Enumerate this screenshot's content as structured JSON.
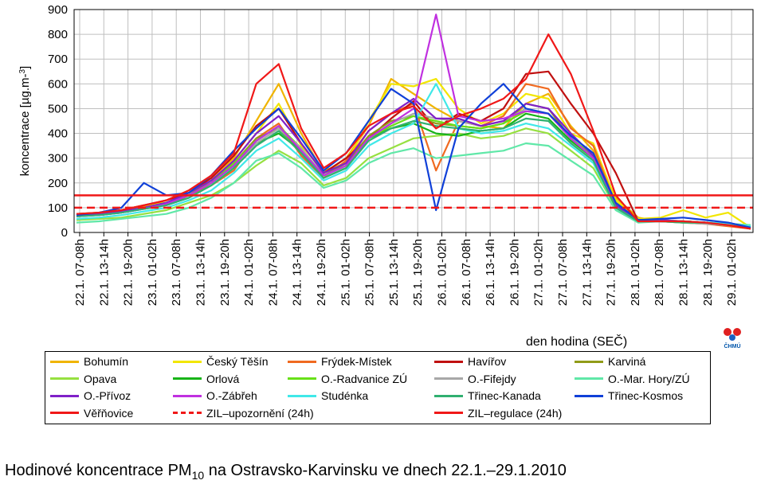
{
  "chart_data": {
    "type": "line",
    "ylabel": "koncentrace [µg.m⁻³]",
    "xlabel": "den hodina (SEČ)",
    "ylim": [
      0,
      900
    ],
    "yticks": [
      "0",
      "100",
      "200",
      "300",
      "400",
      "500",
      "600",
      "700",
      "800",
      "900"
    ],
    "x_ticks": [
      "22.1. 07-08h",
      "22.1. 13-14h",
      "22.1. 19-20h",
      "23.1. 01-02h",
      "23.1. 07-08h",
      "23.1. 13-14h",
      "23.1. 19-20h",
      "24.1. 01-02h",
      "24.1. 07-08h",
      "24.1. 13-14h",
      "24.1. 19-20h",
      "25.1. 01-02h",
      "25.1. 07-08h",
      "25.1. 13-14h",
      "25.1. 19-20h",
      "26.1. 01-02h",
      "26.1. 07-08h",
      "26.1. 13-14h",
      "26.1. 19-20h",
      "27.1. 01-02h",
      "27.1. 07-08h",
      "27.1. 13-14h",
      "27.1. 19-20h",
      "28.1. 01-02h",
      "28.1. 07-08h",
      "28.1. 13-14h",
      "28.1. 19-20h",
      "29.1. 01-02h"
    ],
    "grid": true,
    "legend_position": "bottom",
    "series": [
      {
        "name": "Bohumín",
        "color": "#f0b400",
        "values": [
          70,
          75,
          85,
          105,
          130,
          170,
          220,
          300,
          450,
          600,
          400,
          240,
          300,
          430,
          620,
          560,
          500,
          450,
          430,
          420,
          520,
          560,
          430,
          330,
          140,
          60,
          45,
          45,
          40,
          30,
          15
        ]
      },
      {
        "name": "Český Těšín",
        "color": "#f2e600",
        "values": [
          75,
          80,
          90,
          110,
          120,
          160,
          210,
          290,
          400,
          520,
          350,
          250,
          280,
          450,
          600,
          590,
          620,
          500,
          440,
          480,
          560,
          540,
          400,
          360,
          130,
          55,
          60,
          90,
          60,
          80,
          20
        ]
      },
      {
        "name": "Frýdek-Místek",
        "color": "#f06a20",
        "values": [
          70,
          70,
          80,
          100,
          110,
          150,
          190,
          250,
          380,
          440,
          310,
          220,
          290,
          410,
          480,
          520,
          250,
          450,
          430,
          470,
          600,
          580,
          420,
          350,
          110,
          50,
          45,
          40,
          35,
          25,
          15
        ]
      },
      {
        "name": "Havířov",
        "color": "#c01010",
        "values": [
          75,
          80,
          90,
          110,
          130,
          160,
          220,
          310,
          430,
          500,
          360,
          240,
          300,
          380,
          460,
          530,
          420,
          480,
          450,
          500,
          640,
          650,
          520,
          400,
          240,
          45,
          45,
          45,
          40,
          30,
          15
        ]
      },
      {
        "name": "Karviná",
        "color": "#909b18",
        "values": [
          70,
          75,
          80,
          95,
          110,
          150,
          210,
          280,
          380,
          420,
          330,
          230,
          280,
          390,
          450,
          470,
          440,
          430,
          420,
          440,
          520,
          500,
          380,
          300,
          120,
          50,
          45,
          45,
          40,
          30,
          25
        ]
      },
      {
        "name": "Opava",
        "color": "#96e040",
        "values": [
          50,
          55,
          60,
          75,
          90,
          120,
          150,
          200,
          270,
          330,
          280,
          190,
          220,
          300,
          340,
          380,
          390,
          400,
          380,
          390,
          420,
          400,
          330,
          260,
          100,
          45,
          50,
          45,
          40,
          35,
          30
        ]
      },
      {
        "name": "Orlová",
        "color": "#18b418",
        "values": [
          70,
          75,
          85,
          100,
          120,
          150,
          200,
          270,
          360,
          400,
          330,
          230,
          260,
          380,
          420,
          440,
          400,
          390,
          410,
          420,
          480,
          460,
          370,
          300,
          110,
          50,
          45,
          45,
          40,
          30,
          20
        ]
      },
      {
        "name": "O.-Radvanice ZÚ",
        "color": "#68e018",
        "values": [
          70,
          75,
          85,
          100,
          120,
          150,
          200,
          280,
          370,
          430,
          340,
          230,
          270,
          380,
          430,
          470,
          450,
          430,
          420,
          440,
          490,
          480,
          380,
          310,
          110,
          50,
          50,
          45,
          40,
          35,
          25
        ]
      },
      {
        "name": "O.-Fifejdy",
        "color": "#a8a8a8",
        "values": [
          65,
          70,
          80,
          95,
          110,
          140,
          190,
          260,
          360,
          420,
          340,
          230,
          260,
          380,
          440,
          480,
          460,
          450,
          430,
          450,
          500,
          480,
          380,
          300,
          100,
          45,
          45,
          40,
          35,
          30,
          20
        ]
      },
      {
        "name": "O.-Mar. Hory/ZÚ",
        "color": "#60e8a8",
        "values": [
          40,
          45,
          55,
          65,
          75,
          100,
          140,
          200,
          290,
          320,
          260,
          180,
          210,
          280,
          320,
          340,
          300,
          310,
          320,
          330,
          360,
          350,
          290,
          230,
          90,
          40,
          45,
          40,
          40,
          35,
          30
        ]
      },
      {
        "name": "O.-Přívoz",
        "color": "#8020c8",
        "values": [
          70,
          75,
          85,
          100,
          120,
          160,
          210,
          290,
          400,
          470,
          360,
          240,
          280,
          410,
          480,
          540,
          460,
          460,
          430,
          450,
          520,
          500,
          400,
          310,
          110,
          50,
          50,
          45,
          40,
          30,
          20
        ]
      },
      {
        "name": "O.-Zábřeh",
        "color": "#c030e0",
        "values": [
          65,
          70,
          80,
          95,
          115,
          150,
          200,
          270,
          370,
          430,
          330,
          230,
          270,
          380,
          440,
          500,
          880,
          470,
          450,
          460,
          490,
          480,
          380,
          300,
          100,
          45,
          45,
          45,
          40,
          30,
          20
        ]
      },
      {
        "name": "Studénka",
        "color": "#40e8e8",
        "values": [
          55,
          60,
          70,
          85,
          100,
          130,
          170,
          240,
          330,
          380,
          300,
          210,
          250,
          350,
          400,
          440,
          600,
          420,
          400,
          410,
          440,
          420,
          350,
          280,
          100,
          45,
          45,
          45,
          40,
          35,
          25
        ]
      },
      {
        "name": "Třinec-Kanada",
        "color": "#30b070",
        "values": [
          65,
          70,
          80,
          95,
          110,
          140,
          190,
          260,
          350,
          410,
          320,
          220,
          260,
          370,
          420,
          450,
          430,
          420,
          410,
          420,
          460,
          450,
          360,
          290,
          100,
          45,
          45,
          40,
          40,
          30,
          20
        ]
      },
      {
        "name": "Třinec-Kosmos",
        "color": "#1040d8",
        "values": [
          70,
          80,
          100,
          200,
          150,
          160,
          230,
          330,
          420,
          500,
          380,
          250,
          320,
          450,
          580,
          520,
          90,
          420,
          520,
          600,
          500,
          480,
          390,
          320,
          120,
          50,
          55,
          60,
          50,
          40,
          20
        ]
      },
      {
        "name": "Věřňovice",
        "color": "#f01818",
        "values": [
          75,
          80,
          90,
          110,
          130,
          170,
          230,
          320,
          600,
          680,
          420,
          260,
          320,
          430,
          480,
          510,
          420,
          470,
          500,
          540,
          620,
          800,
          640,
          410,
          150,
          45,
          45,
          45,
          40,
          30,
          15
        ]
      }
    ],
    "limits": [
      {
        "name": "ZIL–upozornění (24h)",
        "value": 100,
        "color": "#f01818",
        "dash": true
      },
      {
        "name": "ZIL–regulace (24h)",
        "value": 150,
        "color": "#f01818",
        "dash": false
      }
    ]
  },
  "logo": {
    "text": "ČHMÚ"
  },
  "caption": {
    "main": "Hodinové koncentrace PM",
    "sub": "10",
    "rest": " na Ostravsko-Karvinsku ve dnech 22.1.–29.1.2010"
  }
}
